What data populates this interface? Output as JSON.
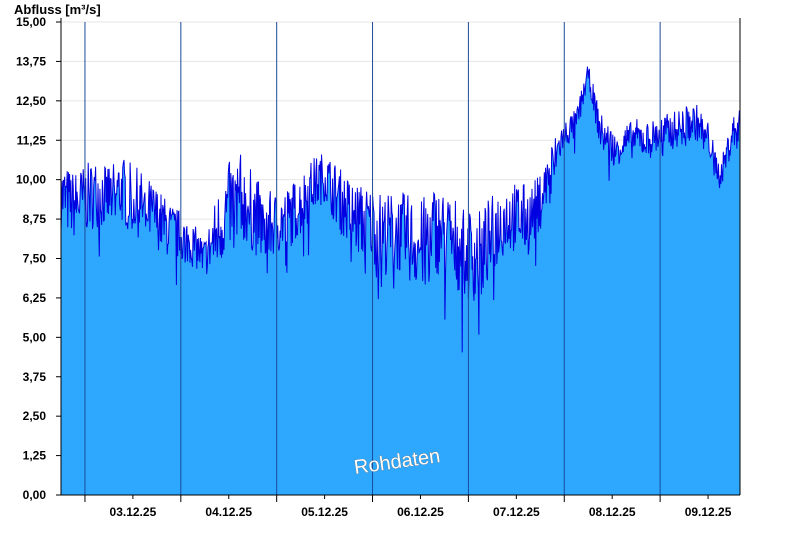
{
  "chart_data": {
    "type": "area",
    "ylabel": "Abfluss [m³/s]",
    "ylim": [
      0,
      15
    ],
    "yticks": [
      "0,00",
      "1,25",
      "2,50",
      "3,75",
      "5,00",
      "6,25",
      "7,50",
      "8,75",
      "10,00",
      "11,25",
      "12,50",
      "13,75",
      "15,00"
    ],
    "ytick_values": [
      0,
      1.25,
      2.5,
      3.75,
      5,
      6.25,
      7.5,
      8.75,
      10,
      11.25,
      12.5,
      13.75,
      15
    ],
    "x_range": [
      "2025-12-02T18:00",
      "2025-12-09T20:00"
    ],
    "day_boundaries": [
      "2025-12-03T00:00",
      "2025-12-04T00:00",
      "2025-12-05T00:00",
      "2025-12-06T00:00",
      "2025-12-07T00:00",
      "2025-12-08T00:00",
      "2025-12-09T00:00"
    ],
    "xticks": [
      "03.12.25",
      "04.12.25",
      "05.12.25",
      "06.12.25",
      "07.12.25",
      "08.12.25",
      "09.12.25"
    ],
    "annotation": "Rohdaten",
    "grid": true,
    "fill_color": "#2ea8ff",
    "line_color": "#0000e0",
    "series": [
      {
        "x": [
          "2025-12-02T18:00",
          "2025-12-02T21:00",
          "2025-12-03T00:00",
          "2025-12-03T03:00",
          "2025-12-03T06:00",
          "2025-12-03T09:00",
          "2025-12-03T12:00",
          "2025-12-03T15:00",
          "2025-12-03T18:00",
          "2025-12-03T21:00",
          "2025-12-04T00:00",
          "2025-12-04T03:00",
          "2025-12-04T06:00",
          "2025-12-04T09:00",
          "2025-12-04T12:00",
          "2025-12-04T15:00",
          "2025-12-04T18:00",
          "2025-12-04T21:00",
          "2025-12-05T00:00",
          "2025-12-05T03:00",
          "2025-12-05T06:00",
          "2025-12-05T09:00",
          "2025-12-05T12:00",
          "2025-12-05T15:00",
          "2025-12-05T18:00",
          "2025-12-05T21:00",
          "2025-12-06T00:00",
          "2025-12-06T03:00",
          "2025-12-06T06:00",
          "2025-12-06T09:00",
          "2025-12-06T12:00",
          "2025-12-06T15:00",
          "2025-12-06T18:00",
          "2025-12-06T21:00",
          "2025-12-07T00:00",
          "2025-12-07T03:00",
          "2025-12-07T06:00",
          "2025-12-07T09:00",
          "2025-12-07T12:00",
          "2025-12-07T15:00",
          "2025-12-07T18:00",
          "2025-12-07T21:00",
          "2025-12-08T00:00",
          "2025-12-08T03:00",
          "2025-12-08T06:00",
          "2025-12-08T09:00",
          "2025-12-08T12:00",
          "2025-12-08T15:00",
          "2025-12-08T18:00",
          "2025-12-08T21:00",
          "2025-12-09T00:00",
          "2025-12-09T03:00",
          "2025-12-09T06:00",
          "2025-12-09T09:00",
          "2025-12-09T12:00",
          "2025-12-09T15:00",
          "2025-12-09T18:00",
          "2025-12-09T20:00"
        ],
        "y": [
          9.6,
          9.3,
          9.5,
          9.7,
          9.6,
          9.8,
          9.5,
          9.2,
          8.9,
          8.5,
          8.3,
          8.0,
          7.6,
          8.4,
          9.3,
          9.6,
          9.1,
          8.6,
          8.7,
          8.9,
          9.3,
          9.9,
          10.2,
          9.6,
          9.1,
          8.8,
          8.7,
          8.4,
          8.5,
          8.3,
          8.0,
          8.6,
          8.4,
          8.1,
          7.8,
          7.7,
          8.4,
          8.9,
          9.0,
          8.8,
          9.4,
          10.6,
          11.5,
          11.8,
          13.4,
          11.6,
          11.1,
          11.2,
          11.4,
          11.3,
          11.5,
          11.6,
          11.8,
          11.9,
          11.4,
          10.1,
          11.5,
          11.7
        ],
        "variability": [
          1.1,
          1.1,
          1.1,
          1.1,
          1.1,
          1.1,
          1.1,
          1.1,
          1.0,
          0.9,
          0.8,
          0.7,
          0.6,
          1.3,
          1.4,
          1.4,
          1.3,
          1.2,
          1.0,
          1.0,
          1.0,
          0.9,
          0.8,
          1.0,
          1.1,
          1.2,
          1.2,
          1.3,
          1.3,
          1.4,
          1.5,
          1.4,
          1.4,
          1.5,
          1.5,
          1.5,
          1.3,
          1.2,
          1.2,
          1.1,
          0.9,
          0.7,
          0.5,
          0.5,
          0.3,
          0.6,
          0.6,
          0.6,
          0.6,
          0.6,
          0.6,
          0.6,
          0.6,
          0.6,
          0.5,
          0.4,
          0.6,
          0.6
        ]
      }
    ]
  }
}
